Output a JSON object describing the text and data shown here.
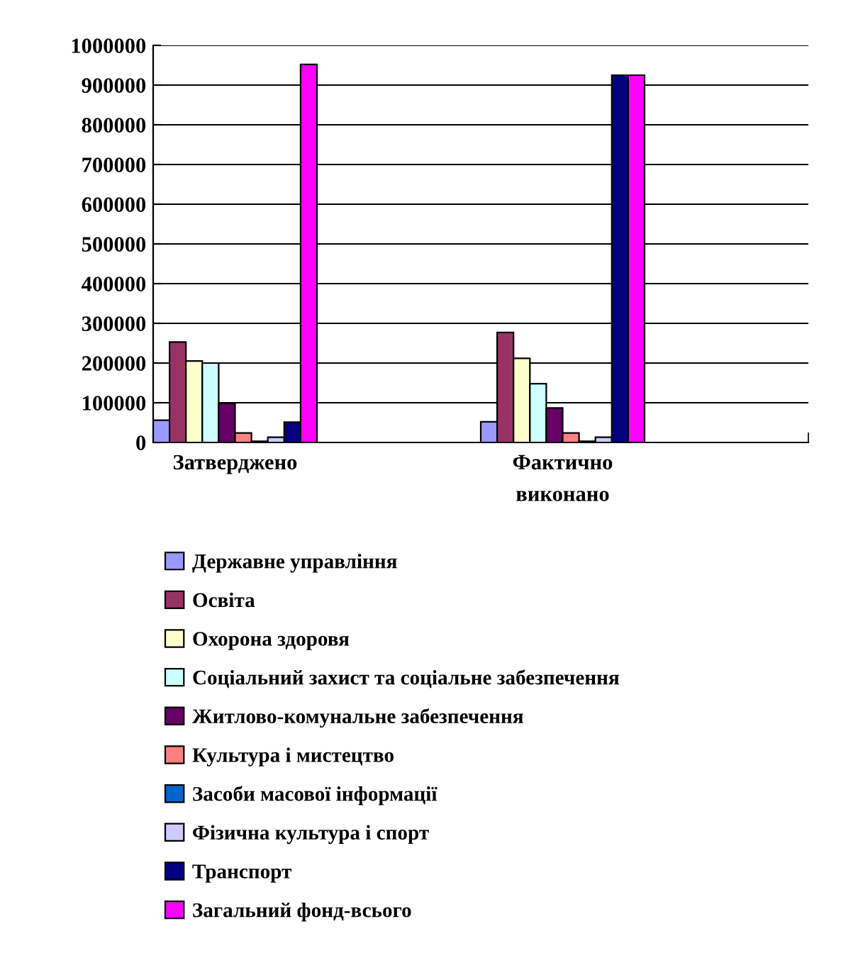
{
  "chart_data": {
    "type": "bar",
    "categories": [
      "Затверджено",
      null,
      "Фактично виконано",
      null
    ],
    "series": [
      {
        "name": "Державне управління",
        "color": "#9999ff",
        "values": [
          56000,
          null,
          52000,
          null
        ]
      },
      {
        "name": "Освіта",
        "color": "#993366",
        "values": [
          253000,
          null,
          277000,
          null
        ]
      },
      {
        "name": "Охорона здоровя",
        "color": "#ffffcc",
        "values": [
          205000,
          null,
          212000,
          null
        ]
      },
      {
        "name": "Соціальний захист та соціальне забезпечення",
        "color": "#ccffff",
        "values": [
          200000,
          null,
          148000,
          null
        ]
      },
      {
        "name": "Житлово-комунальне забезпечення",
        "color": "#660066",
        "values": [
          99000,
          null,
          87000,
          null
        ]
      },
      {
        "name": "Культура і мистецтво",
        "color": "#ff8080",
        "values": [
          24000,
          null,
          24000,
          null
        ]
      },
      {
        "name": "Засоби масової інформації",
        "color": "#0066cc",
        "values": [
          3000,
          null,
          3000,
          null
        ]
      },
      {
        "name": "Фізична культура і спорт",
        "color": "#ccccff",
        "values": [
          13000,
          null,
          13000,
          null
        ]
      },
      {
        "name": "Транспорт",
        "color": "#000080",
        "values": [
          51000,
          null,
          925000,
          null
        ]
      },
      {
        "name": "Загальний фонд-всього",
        "color": "#ff00ff",
        "values": [
          952000,
          null,
          925000,
          null
        ]
      }
    ],
    "ylim": [
      0,
      1000000
    ],
    "yticks": [
      0,
      100000,
      200000,
      300000,
      400000,
      500000,
      600000,
      700000,
      800000,
      900000,
      1000000
    ],
    "grid": "y",
    "legend": "bottom"
  }
}
